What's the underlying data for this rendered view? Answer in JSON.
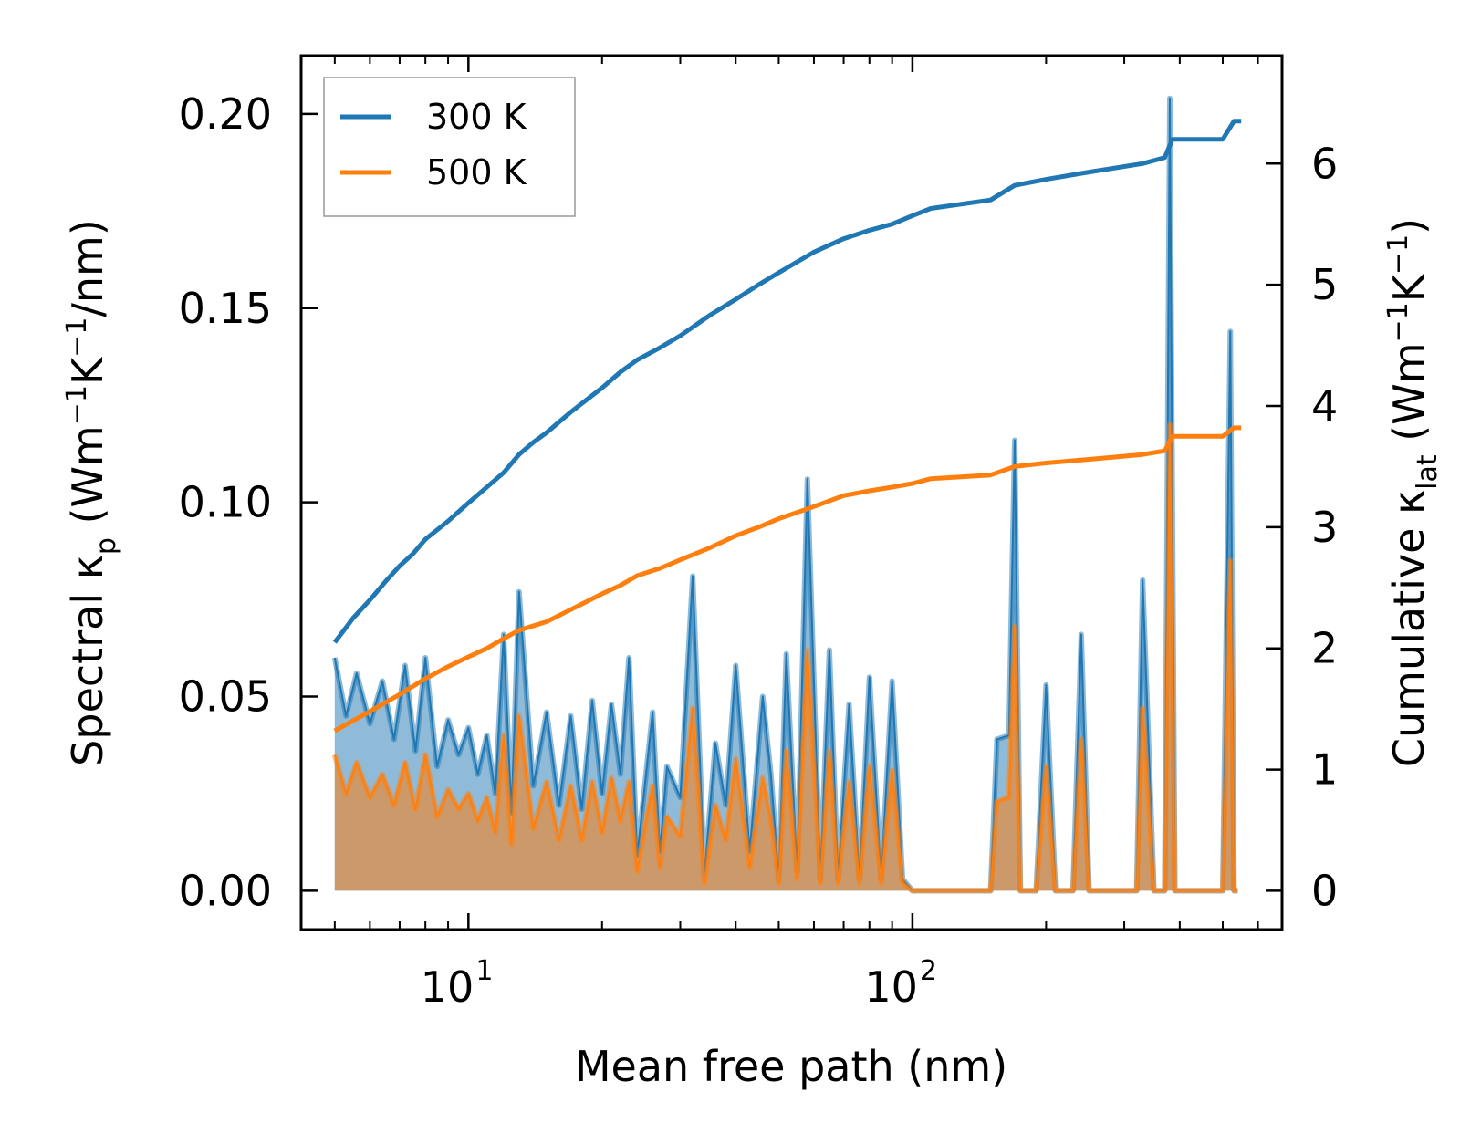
{
  "chart_data": {
    "type": "line",
    "xlabel": "Mean free path (nm)",
    "ylabel_left": {
      "main": "Spectral κ",
      "sub": "p",
      "units_pre": " (Wm",
      "exp1": "−1",
      "mid": "K",
      "exp2": "−1",
      "units_post": "/nm)"
    },
    "ylabel_right": {
      "main": "Cumulative κ",
      "sub": "lat",
      "units_pre": " (Wm",
      "exp1": "−1",
      "mid": "K",
      "exp2": "−1",
      "units_post": ")"
    },
    "x_scale": "log",
    "xlim": [
      4.2,
      680
    ],
    "ylim_left": [
      -0.01,
      0.215
    ],
    "ylim_right": [
      -0.3205,
      6.8905
    ],
    "x_ticks": [
      {
        "value": 10,
        "base": "10",
        "exp": "1"
      },
      {
        "value": 100,
        "base": "10",
        "exp": "2"
      }
    ],
    "y_ticks_left": [
      "0.00",
      "0.05",
      "0.10",
      "0.15",
      "0.20"
    ],
    "y_ticks_left_values": [
      0,
      0.05,
      0.1,
      0.15,
      0.2
    ],
    "y_ticks_right": [
      "0",
      "1",
      "2",
      "3",
      "4",
      "5",
      "6"
    ],
    "y_ticks_right_values": [
      0,
      1,
      2,
      3,
      4,
      5,
      6
    ],
    "legend": {
      "position": "upper-left",
      "entries": [
        "300 K",
        "500 K"
      ]
    },
    "colors": {
      "300K": "#1f77b4",
      "500K": "#ff7f0e"
    },
    "series": [
      {
        "name": "300 K",
        "kind": "cumulative",
        "axis": "right",
        "x": [
          5.0,
          5.5,
          6.0,
          6.5,
          7.0,
          7.5,
          8.0,
          9.0,
          10.0,
          11.0,
          12.0,
          13.0,
          14.0,
          15.0,
          17.0,
          20.0,
          22.0,
          24.0,
          27.0,
          30.0,
          35.0,
          40.0,
          45.0,
          50.0,
          60.0,
          70.0,
          80.0,
          90.0,
          100.0,
          110.0,
          150.0,
          170.0,
          200.0,
          250.0,
          330.0,
          370.0,
          385.0,
          500.0,
          530.0,
          550.0
        ],
        "values": [
          2.05,
          2.25,
          2.4,
          2.55,
          2.68,
          2.78,
          2.9,
          3.05,
          3.2,
          3.33,
          3.45,
          3.6,
          3.7,
          3.78,
          3.95,
          4.15,
          4.28,
          4.38,
          4.48,
          4.58,
          4.75,
          4.88,
          5.0,
          5.1,
          5.27,
          5.38,
          5.45,
          5.5,
          5.57,
          5.63,
          5.7,
          5.82,
          5.87,
          5.93,
          6.0,
          6.05,
          6.2,
          6.2,
          6.35,
          6.35
        ]
      },
      {
        "name": "500 K",
        "kind": "cumulative",
        "axis": "right",
        "x": [
          5.0,
          6.0,
          7.0,
          8.0,
          9.0,
          10.0,
          11.0,
          12.0,
          13.0,
          15.0,
          17.0,
          20.0,
          22.0,
          24.0,
          27.0,
          30.0,
          35.0,
          40.0,
          45.0,
          50.0,
          60.0,
          70.0,
          80.0,
          90.0,
          100.0,
          110.0,
          150.0,
          170.0,
          200.0,
          250.0,
          330.0,
          370.0,
          385.0,
          500.0,
          530.0,
          550.0
        ],
        "values": [
          1.32,
          1.48,
          1.62,
          1.75,
          1.85,
          1.93,
          2.0,
          2.08,
          2.15,
          2.22,
          2.32,
          2.45,
          2.52,
          2.6,
          2.66,
          2.73,
          2.83,
          2.93,
          3.0,
          3.07,
          3.17,
          3.26,
          3.3,
          3.33,
          3.36,
          3.4,
          3.43,
          3.5,
          3.53,
          3.56,
          3.6,
          3.63,
          3.75,
          3.75,
          3.82,
          3.82
        ]
      },
      {
        "name": "300 K spectral",
        "kind": "spectral",
        "axis": "left",
        "x": [
          5.0,
          5.3,
          5.6,
          6.0,
          6.4,
          6.8,
          7.2,
          7.6,
          8.0,
          8.5,
          9.0,
          9.5,
          10.0,
          10.5,
          11.0,
          11.5,
          12.0,
          12.5,
          13.0,
          14.0,
          15.0,
          16.0,
          17.0,
          18.0,
          19.0,
          20.0,
          21.0,
          22.0,
          23.0,
          24.0,
          25.0,
          26.0,
          27.0,
          28.0,
          30.0,
          32.0,
          34.0,
          36.0,
          38.0,
          40.0,
          43.0,
          46.0,
          48.0,
          50.0,
          52.0,
          55.0,
          58.0,
          62.0,
          65.0,
          68.0,
          72.0,
          76.0,
          80.0,
          85.0,
          90.0,
          95.0,
          100.0,
          105.0,
          110.0,
          115.0,
          150.0,
          155.0,
          165.0,
          170.0,
          175.0,
          190.0,
          200.0,
          210.0,
          230.0,
          240.0,
          250.0,
          320.0,
          330.0,
          350.0,
          370.0,
          380.0,
          390.0,
          500.0,
          520.0,
          530.0,
          540.0
        ],
        "values": [
          0.06,
          0.045,
          0.056,
          0.043,
          0.054,
          0.039,
          0.058,
          0.036,
          0.06,
          0.032,
          0.044,
          0.035,
          0.042,
          0.03,
          0.04,
          0.025,
          0.066,
          0.02,
          0.077,
          0.027,
          0.046,
          0.022,
          0.045,
          0.021,
          0.049,
          0.025,
          0.048,
          0.03,
          0.06,
          0.009,
          0.028,
          0.046,
          0.01,
          0.032,
          0.024,
          0.081,
          0.004,
          0.038,
          0.022,
          0.058,
          0.01,
          0.05,
          0.03,
          0.003,
          0.061,
          0.005,
          0.106,
          0.003,
          0.062,
          0.003,
          0.048,
          0.003,
          0.055,
          0.003,
          0.054,
          0.003,
          0.0,
          0.0,
          0.0,
          0.0,
          0.0,
          0.039,
          0.04,
          0.116,
          0.0,
          0.0,
          0.053,
          0.0,
          0.0,
          0.066,
          0.0,
          0.0,
          0.08,
          0.0,
          0.0,
          0.204,
          0.0,
          0.0,
          0.144,
          0.0,
          0.0
        ]
      },
      {
        "name": "500 K spectral",
        "kind": "spectral",
        "axis": "left",
        "x": [
          5.0,
          5.3,
          5.6,
          6.0,
          6.4,
          6.8,
          7.2,
          7.6,
          8.0,
          8.5,
          9.0,
          9.5,
          10.0,
          10.5,
          11.0,
          11.5,
          12.0,
          12.5,
          13.0,
          14.0,
          15.0,
          16.0,
          17.0,
          18.0,
          19.0,
          20.0,
          21.0,
          22.0,
          23.0,
          24.0,
          25.0,
          26.0,
          27.0,
          28.0,
          30.0,
          32.0,
          34.0,
          36.0,
          38.0,
          40.0,
          43.0,
          46.0,
          48.0,
          50.0,
          52.0,
          55.0,
          58.0,
          62.0,
          65.0,
          68.0,
          72.0,
          76.0,
          80.0,
          85.0,
          90.0,
          95.0,
          100.0,
          105.0,
          110.0,
          115.0,
          150.0,
          155.0,
          165.0,
          170.0,
          175.0,
          190.0,
          200.0,
          210.0,
          230.0,
          240.0,
          250.0,
          320.0,
          330.0,
          350.0,
          370.0,
          380.0,
          390.0,
          500.0,
          520.0,
          530.0,
          540.0
        ],
        "values": [
          0.035,
          0.025,
          0.033,
          0.024,
          0.03,
          0.022,
          0.033,
          0.021,
          0.035,
          0.019,
          0.026,
          0.021,
          0.025,
          0.018,
          0.024,
          0.015,
          0.04,
          0.012,
          0.045,
          0.016,
          0.028,
          0.013,
          0.027,
          0.013,
          0.028,
          0.015,
          0.029,
          0.018,
          0.028,
          0.005,
          0.017,
          0.027,
          0.006,
          0.019,
          0.014,
          0.047,
          0.002,
          0.022,
          0.013,
          0.034,
          0.006,
          0.029,
          0.018,
          0.002,
          0.036,
          0.003,
          0.062,
          0.002,
          0.036,
          0.002,
          0.028,
          0.002,
          0.032,
          0.002,
          0.031,
          0.002,
          0.0,
          0.0,
          0.0,
          0.0,
          0.0,
          0.023,
          0.024,
          0.068,
          0.0,
          0.0,
          0.032,
          0.0,
          0.0,
          0.039,
          0.0,
          0.0,
          0.047,
          0.0,
          0.0,
          0.12,
          0.0,
          0.0,
          0.085,
          0.0,
          0.0
        ]
      }
    ]
  }
}
